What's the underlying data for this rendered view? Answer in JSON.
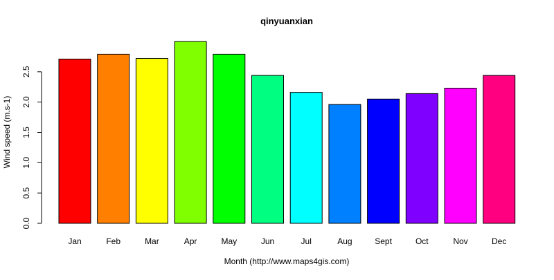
{
  "chart_data": {
    "type": "bar",
    "title": "qinyuanxian",
    "xlabel": "Month (http://www.maps4gis.com)",
    "ylabel": "Wind speed (m.s-1)",
    "categories": [
      "Jan",
      "Feb",
      "Mar",
      "Apr",
      "May",
      "Jun",
      "Jul",
      "Aug",
      "Sept",
      "Oct",
      "Nov",
      "Dec"
    ],
    "values": [
      2.71,
      2.79,
      2.72,
      3.0,
      2.79,
      2.44,
      2.16,
      1.96,
      2.05,
      2.14,
      2.23,
      2.44
    ],
    "colors": [
      "#FF0000",
      "#FF8000",
      "#FFFF00",
      "#80FF00",
      "#00FF00",
      "#00FF80",
      "#00FFFF",
      "#0080FF",
      "#0000FF",
      "#8000FF",
      "#FF00FF",
      "#FF0080"
    ],
    "y_ticks": [
      "0.0",
      "0.5",
      "1.0",
      "1.5",
      "2.0",
      "2.5"
    ],
    "ylim": [
      0,
      3.0
    ],
    "grid": false,
    "legend": "none"
  }
}
